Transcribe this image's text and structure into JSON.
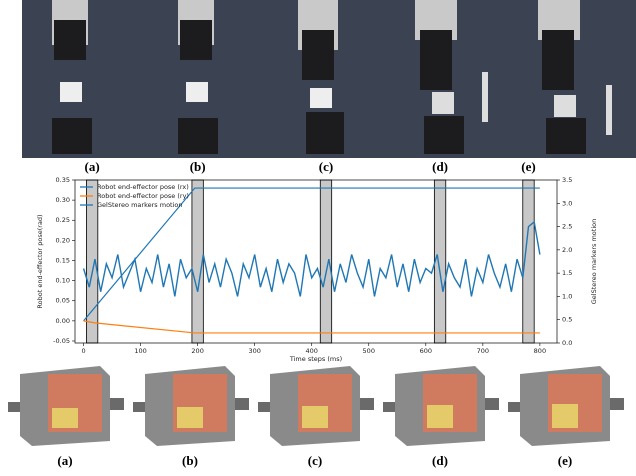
{
  "chart_data": {
    "type": "line",
    "xlabel": "Time steps (ms)",
    "ylabel": "Robot end-effector pose(rad)",
    "y2label": "GelStereo markers motion",
    "xlim": [
      -15,
      830
    ],
    "xticks": [
      0,
      100,
      200,
      300,
      400,
      500,
      600,
      700,
      800
    ],
    "ylim": [
      -0.055,
      0.35
    ],
    "yticks": [
      -0.05,
      {
        "value": 0,
        "label": "0.00"
      },
      0.05,
      {
        "value": 0.1,
        "label": "0.10"
      },
      0.15,
      {
        "value": 0.2,
        "label": "0.20"
      },
      0.25,
      {
        "value": 0.3,
        "label": "0.30"
      },
      0.35
    ],
    "y2lim": [
      0,
      3.5
    ],
    "y2ticks": [
      {
        "value": 0,
        "label": "0.0"
      },
      0.5,
      {
        "value": 1,
        "label": "1.0"
      },
      1.5,
      {
        "value": 2,
        "label": "2.0"
      },
      2.5,
      {
        "value": 3,
        "label": "3.0"
      },
      3.5
    ],
    "legend": "upper left",
    "series": [
      {
        "name": "Robot end-effector pose (rx)",
        "color": "#1f77b4",
        "x": [
          0,
          195,
          800
        ],
        "values": [
          0,
          0.33,
          0.33
        ]
      },
      {
        "name": "Robot end-effector pose (ry)",
        "color": "#ff7f0e",
        "x": [
          0,
          20,
          195,
          800
        ],
        "values": [
          0,
          -0.005,
          -0.03,
          -0.03
        ]
      },
      {
        "name": "GelStereo markers motion",
        "color": "#1f77b4",
        "axis": "y2",
        "x": [
          0,
          10,
          20,
          30,
          40,
          50,
          60,
          70,
          80,
          90,
          100,
          110,
          120,
          130,
          140,
          150,
          160,
          170,
          180,
          190,
          200,
          210,
          220,
          230,
          240,
          250,
          260,
          270,
          280,
          290,
          300,
          310,
          320,
          330,
          340,
          350,
          360,
          370,
          380,
          390,
          400,
          410,
          420,
          430,
          440,
          450,
          460,
          470,
          480,
          490,
          500,
          510,
          520,
          530,
          540,
          550,
          560,
          570,
          580,
          590,
          600,
          610,
          620,
          630,
          640,
          650,
          660,
          670,
          680,
          690,
          700,
          710,
          720,
          730,
          740,
          750,
          760,
          770,
          780,
          790,
          800
        ],
        "values": [
          1.6,
          1.2,
          1.8,
          1.1,
          1.7,
          1.4,
          1.9,
          1.2,
          1.5,
          1.8,
          1.1,
          1.6,
          1.3,
          1.9,
          1.2,
          1.7,
          1.0,
          1.8,
          1.4,
          1.6,
          1.1,
          1.9,
          1.3,
          1.7,
          1.2,
          1.8,
          1.5,
          1.0,
          1.7,
          1.4,
          1.9,
          1.2,
          1.6,
          1.1,
          1.8,
          1.3,
          1.7,
          1.5,
          1.0,
          1.9,
          1.4,
          1.6,
          1.2,
          1.8,
          1.1,
          1.7,
          1.3,
          1.9,
          1.5,
          1.2,
          1.8,
          1.0,
          1.6,
          1.4,
          1.9,
          1.2,
          1.7,
          1.1,
          1.8,
          1.3,
          1.6,
          1.5,
          1.9,
          1.1,
          1.7,
          1.4,
          1.2,
          1.8,
          1.0,
          1.6,
          1.3,
          1.9,
          1.5,
          1.2,
          1.7,
          1.1,
          1.8,
          1.4,
          2.5,
          2.6,
          1.9
        ]
      }
    ],
    "highlights": [
      {
        "label": "(a)",
        "x": [
          5,
          25
        ]
      },
      {
        "label": "(b)",
        "x": [
          190,
          210
        ]
      },
      {
        "label": "(c)",
        "x": [
          415,
          435
        ]
      },
      {
        "label": "(d)",
        "x": [
          615,
          635
        ]
      },
      {
        "label": "(e)",
        "x": [
          770,
          790
        ]
      }
    ]
  },
  "renderings": {
    "labels": [
      "(a)",
      "(b)",
      "(c)",
      "(d)",
      "(e)"
    ]
  }
}
